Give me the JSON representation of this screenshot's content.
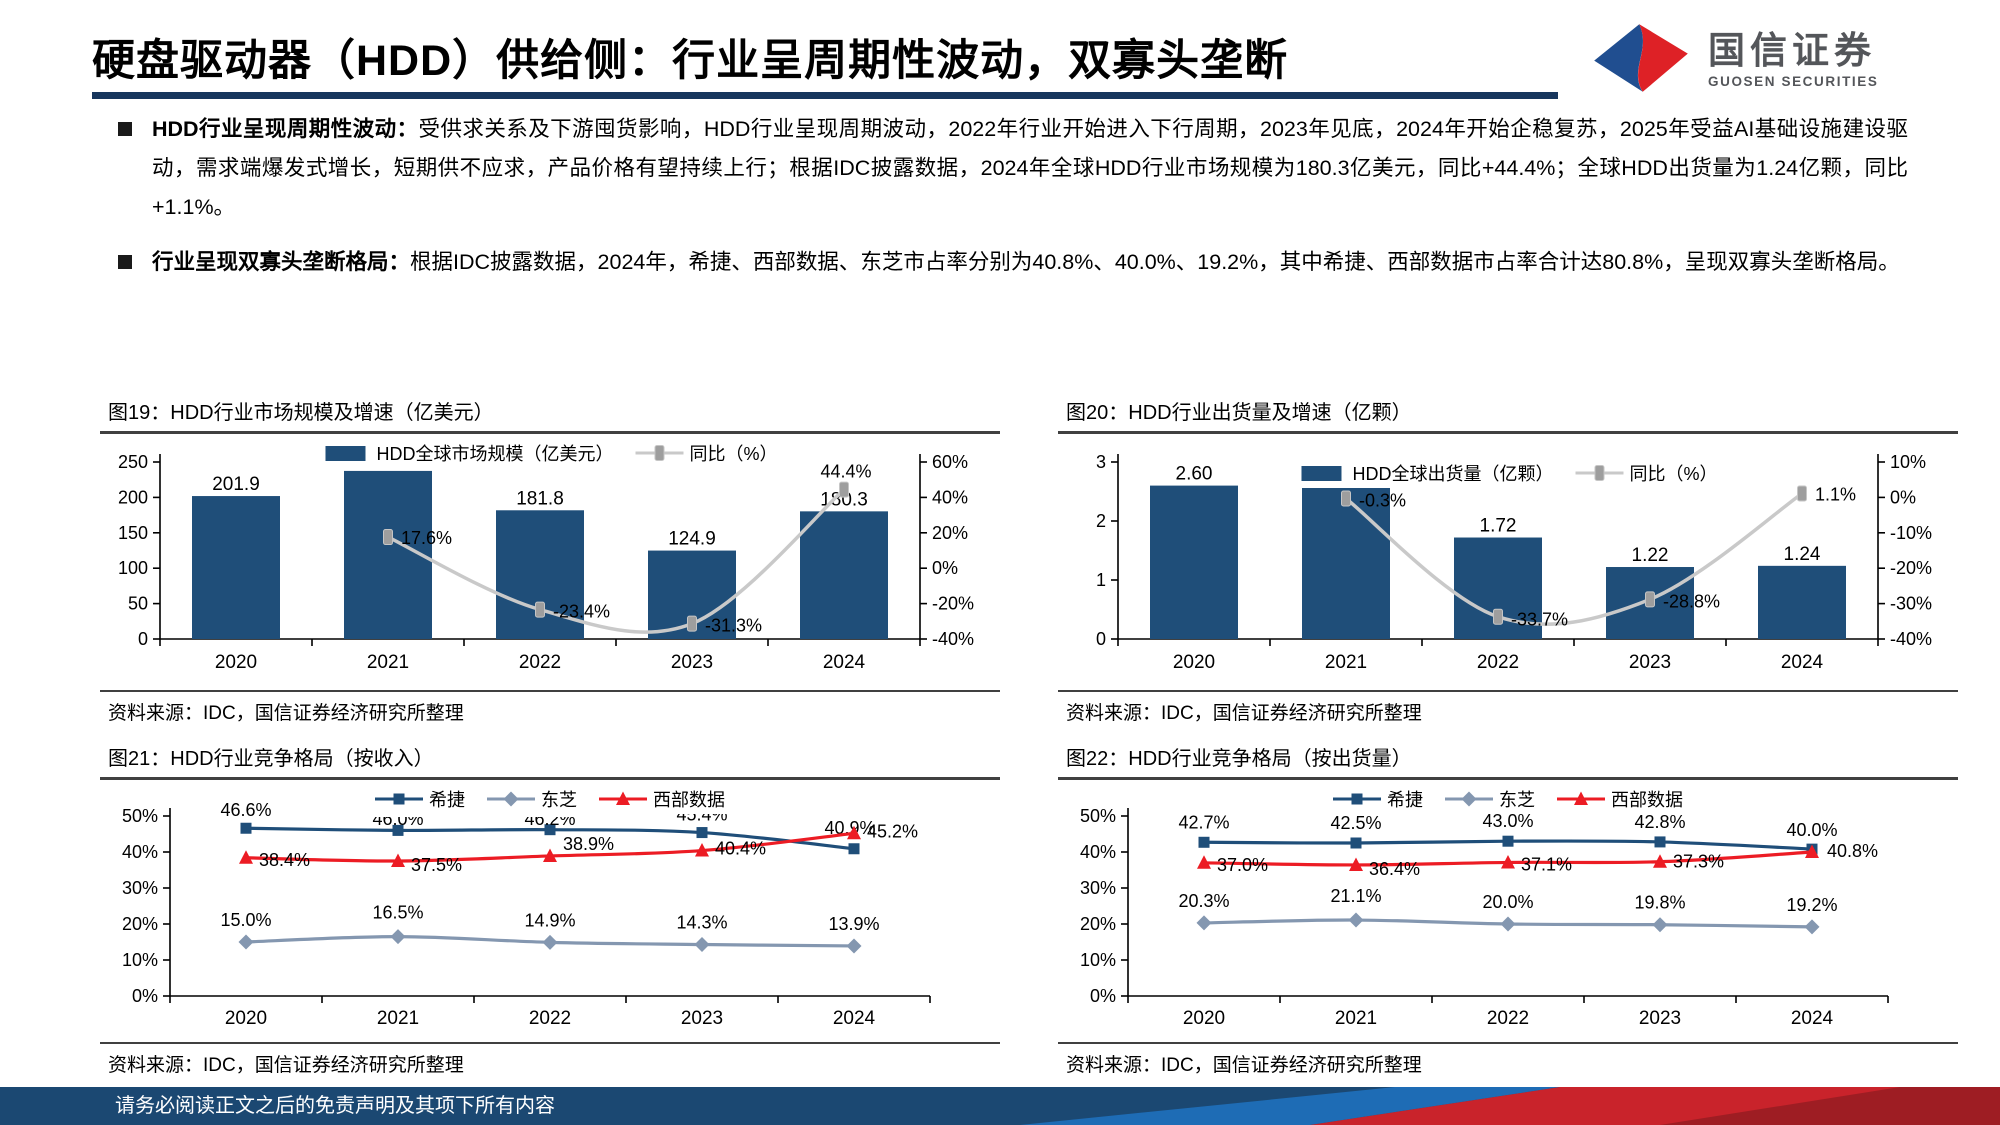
{
  "header": {
    "title": "硬盘驱动器（HDD）供给侧：行业呈周期性波动，双寡头垄断"
  },
  "logo": {
    "cn": "国信证券",
    "en": "GUOSEN SECURITIES"
  },
  "bullets": [
    {
      "lead": "HDD行业呈现周期性波动：",
      "text": "受供求关系及下游囤货影响，HDD行业呈现周期波动，2022年行业开始进入下行周期，2023年见底，2024年开始企稳复苏，2025年受益AI基础设施建设驱动，需求端爆发式增长，短期供不应求，产品价格有望持续上行；根据IDC披露数据，2024年全球HDD行业市场规模为180.3亿美元，同比+44.4%；全球HDD出货量为1.24亿颗，同比+1.1%。"
    },
    {
      "lead": "行业呈现双寡头垄断格局：",
      "text": "根据IDC披露数据，2024年，希捷、西部数据、东芝市占率分别为40.8%、40.0%、19.2%，其中希捷、西部数据市占率合计达80.8%，呈现双寡头垄断格局。"
    }
  ],
  "footer": {
    "disclaimer": "请务必阅读正文之后的免责声明及其项下所有内容"
  },
  "colors": {
    "navy": "#1F4E79",
    "gray_line": "#C9C9C9",
    "gray_marker": "#9E9E9E",
    "toshiba": "#8497B0",
    "wd_red": "#EC1C24",
    "underline": "#17365D",
    "footer_navy": "#1B4872",
    "footer_blue": "#1E6CB5",
    "footer_red": "#C9232B",
    "footer_dark_red": "#9E1D23"
  },
  "chart_data": [
    {
      "id": "fig19",
      "type": "bar",
      "title": "图19：HDD行业市场规模及增速（亿美元）",
      "source": "资料来源：IDC，国信证券经济研究所整理",
      "categories": [
        "2020",
        "2021",
        "2022",
        "2023",
        "2024"
      ],
      "bar_series": {
        "name": "HDD全球市场规模（亿美元）",
        "values": [
          201.9,
          237.4,
          181.8,
          124.9,
          180.3
        ],
        "labels": [
          "201.9",
          "237.4",
          "181.8",
          "124.9",
          "180.3"
        ]
      },
      "line_series": {
        "name": "同比（%）",
        "values": [
          null,
          17.6,
          -23.4,
          -31.3,
          44.4
        ],
        "labels": [
          "",
          "17.6%",
          "-23.4%",
          "-31.3%",
          "44.4%"
        ]
      },
      "left_axis": {
        "ticks": [
          "0",
          "50",
          "100",
          "150",
          "200",
          "250"
        ],
        "min": 0,
        "max": 250
      },
      "right_axis": {
        "ticks": [
          "-40%",
          "-20%",
          "0%",
          "20%",
          "40%",
          "60%"
        ],
        "min": -40,
        "max": 60
      },
      "legend_position": "top-center",
      "grid": "off"
    },
    {
      "id": "fig20",
      "type": "bar",
      "title": "图20：HDD行业出货量及增速（亿颗）",
      "source": "资料来源：IDC，国信证券经济研究所整理",
      "categories": [
        "2020",
        "2021",
        "2022",
        "2023",
        "2024"
      ],
      "bar_series": {
        "name": "HDD全球出货量（亿颗）",
        "values": [
          2.6,
          2.59,
          1.72,
          1.22,
          1.24
        ],
        "labels": [
          "2.60",
          "2.59",
          "1.72",
          "1.22",
          "1.24"
        ]
      },
      "line_series": {
        "name": "同比（%）",
        "values": [
          null,
          -0.3,
          -33.7,
          -28.8,
          1.1
        ],
        "labels": [
          "",
          "-0.3%",
          "-33.7%",
          "-28.8%",
          "1.1%"
        ]
      },
      "left_axis": {
        "ticks": [
          "0",
          "1",
          "2",
          "3"
        ],
        "min": 0,
        "max": 3
      },
      "right_axis": {
        "ticks": [
          "-40%",
          "-30%",
          "-20%",
          "-10%",
          "0%",
          "10%"
        ],
        "min": -40,
        "max": 10
      },
      "legend_position": "top-center",
      "grid": "off"
    },
    {
      "id": "fig21",
      "type": "line",
      "title": "图21：HDD行业竞争格局（按收入）",
      "source": "资料来源：IDC，国信证券经济研究所整理",
      "categories": [
        "2020",
        "2021",
        "2022",
        "2023",
        "2024"
      ],
      "series": [
        {
          "name": "希捷",
          "marker": "square",
          "values": [
            46.6,
            46.0,
            46.2,
            45.4,
            40.9
          ],
          "labels": [
            "46.6%",
            "46.0%",
            "46.2%",
            "45.4%",
            "40.9%"
          ]
        },
        {
          "name": "东芝",
          "marker": "diamond",
          "values": [
            15.0,
            16.5,
            14.9,
            14.3,
            13.9
          ],
          "labels": [
            "15.0%",
            "16.5%",
            "14.9%",
            "14.3%",
            "13.9%"
          ]
        },
        {
          "name": "西部数据",
          "marker": "triangle",
          "values": [
            38.4,
            37.5,
            38.9,
            40.4,
            45.2
          ],
          "labels": [
            "38.4%",
            "37.5%",
            "38.9%",
            "40.4%",
            "45.2%"
          ]
        }
      ],
      "y_axis": {
        "ticks": [
          "0%",
          "10%",
          "20%",
          "30%",
          "40%",
          "50%"
        ],
        "min": 0,
        "max": 50
      },
      "legend_position": "top-center",
      "grid": "off"
    },
    {
      "id": "fig22",
      "type": "line",
      "title": "图22：HDD行业竞争格局（按出货量）",
      "source": "资料来源：IDC，国信证券经济研究所整理",
      "categories": [
        "2020",
        "2021",
        "2022",
        "2023",
        "2024"
      ],
      "series": [
        {
          "name": "希捷",
          "marker": "square",
          "values": [
            42.7,
            42.5,
            43.0,
            42.8,
            40.8
          ],
          "labels": [
            "42.7%",
            "42.5%",
            "43.0%",
            "42.8%",
            "40.8%"
          ]
        },
        {
          "name": "东芝",
          "marker": "diamond",
          "values": [
            20.3,
            21.1,
            20.0,
            19.8,
            19.2
          ],
          "labels": [
            "20.3%",
            "21.1%",
            "20.0%",
            "19.8%",
            "19.2%"
          ]
        },
        {
          "name": "西部数据",
          "marker": "triangle",
          "values": [
            37.0,
            36.4,
            37.1,
            37.3,
            40.0
          ],
          "labels": [
            "37.0%",
            "36.4%",
            "37.1%",
            "37.3%",
            "40.0%"
          ]
        }
      ],
      "y_axis": {
        "ticks": [
          "0%",
          "10%",
          "20%",
          "30%",
          "40%",
          "50%"
        ],
        "min": 0,
        "max": 50
      },
      "legend_position": "top-center",
      "grid": "off"
    }
  ]
}
